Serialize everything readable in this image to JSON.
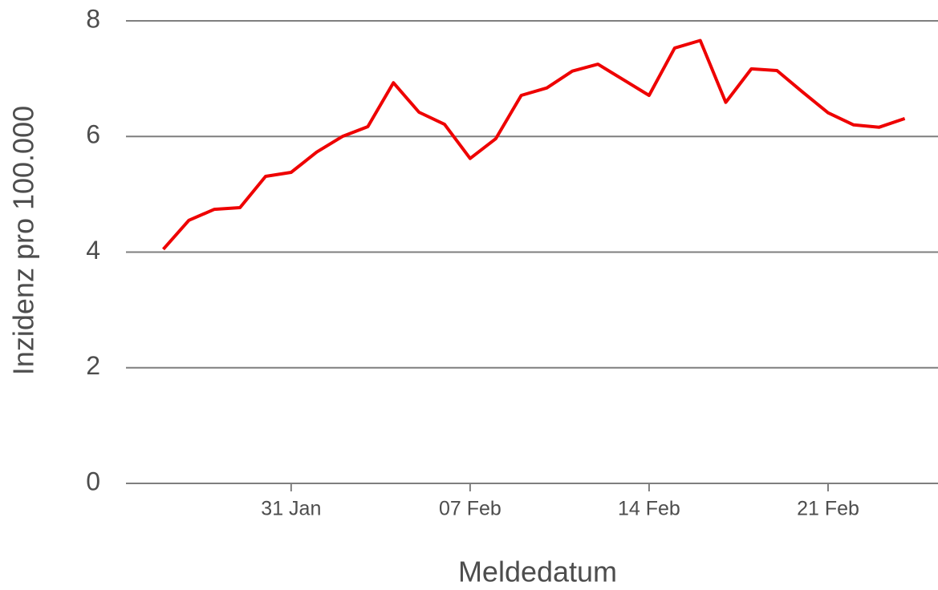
{
  "chart_data": {
    "type": "line",
    "x_label": "Meldedatum",
    "y_label": "Inzidenz pro 100.000",
    "x": [
      "26 Jan",
      "27 Jan",
      "28 Jan",
      "29 Jan",
      "30 Jan",
      "31 Jan",
      "01 Feb",
      "02 Feb",
      "03 Feb",
      "04 Feb",
      "05 Feb",
      "06 Feb",
      "07 Feb",
      "08 Feb",
      "09 Feb",
      "10 Feb",
      "11 Feb",
      "12 Feb",
      "13 Feb",
      "14 Feb",
      "15 Feb",
      "16 Feb",
      "17 Feb",
      "18 Feb",
      "19 Feb",
      "20 Feb",
      "21 Feb",
      "22 Feb",
      "23 Feb",
      "24 Feb"
    ],
    "values": [
      4.05,
      4.55,
      4.74,
      4.77,
      5.31,
      5.38,
      5.73,
      6.0,
      6.17,
      6.93,
      6.42,
      6.21,
      5.62,
      5.96,
      6.71,
      6.84,
      7.13,
      7.25,
      6.98,
      6.71,
      7.53,
      7.66,
      6.59,
      7.17,
      7.14,
      6.77,
      6.41,
      6.2,
      6.16,
      6.31
    ],
    "color": "#ee0000",
    "xticks": [
      "31 Jan",
      "07 Feb",
      "14 Feb",
      "21 Feb"
    ],
    "ylim": [
      0,
      8
    ],
    "yticks": [
      0,
      2,
      4,
      6,
      8
    ],
    "grid": true
  }
}
